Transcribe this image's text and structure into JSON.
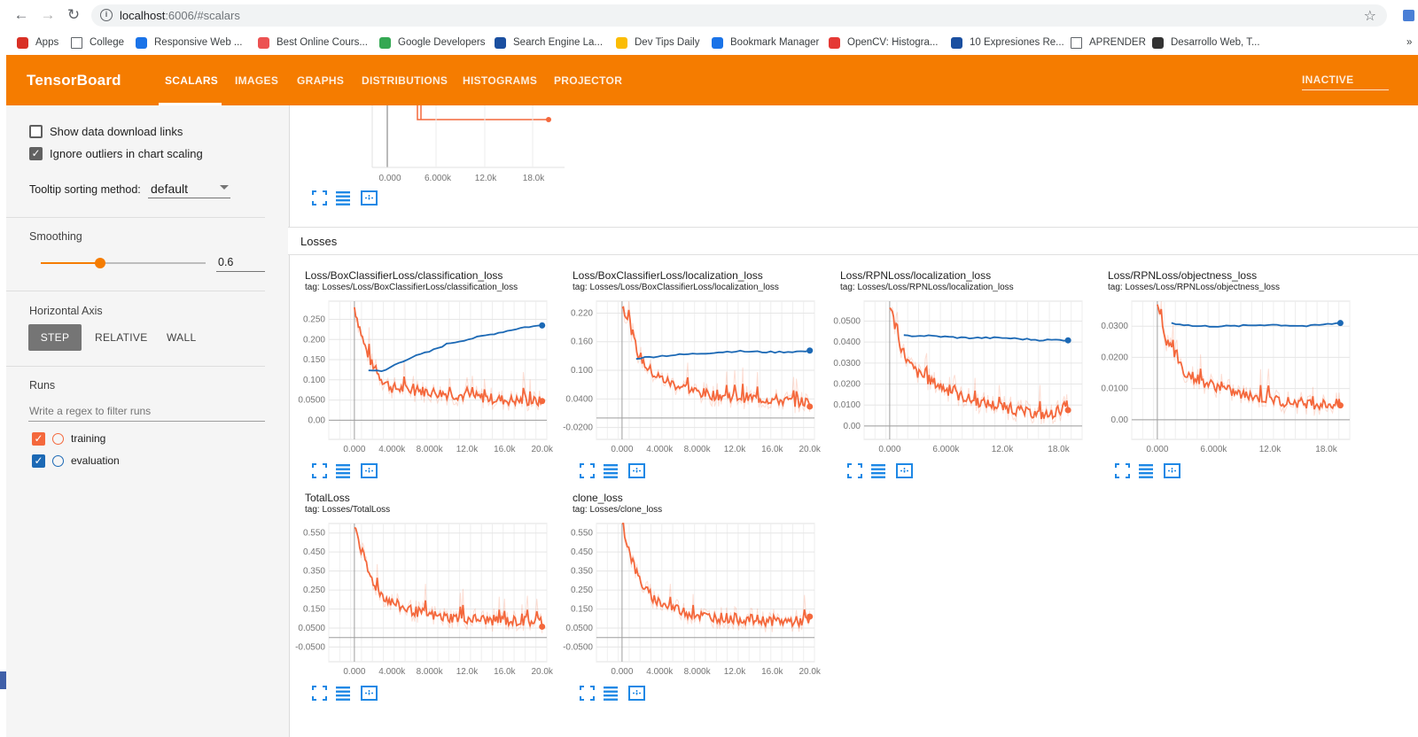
{
  "browser": {
    "url_host": "localhost",
    "url_rest": ":6006/#scalars",
    "bookmarks": [
      {
        "label": "Apps",
        "icon": "apps-grid-icon",
        "color": "#d93025"
      },
      {
        "label": "College",
        "icon": "folder-icon",
        "color": "#5f6368"
      },
      {
        "label": "Responsive Web ...",
        "icon": "udacity-icon",
        "color": "#1a73e8"
      },
      {
        "label": "Best Online Cours...",
        "icon": "udemy-icon",
        "color": "#ec5252"
      },
      {
        "label": "Google Developers",
        "icon": "google-dev-icon",
        "color": "#34a853"
      },
      {
        "label": "Search Engine La...",
        "icon": "gear-badge-icon",
        "color": "#1a4fa0"
      },
      {
        "label": "Dev Tips Daily",
        "icon": "u-badge-icon",
        "color": "#fbbc04"
      },
      {
        "label": "Bookmark Manager",
        "icon": "star-icon",
        "color": "#1a73e8"
      },
      {
        "label": "OpenCV: Histogra...",
        "icon": "opencv-icon",
        "color": "#e53935"
      },
      {
        "label": "10 Expresiones Re...",
        "icon": "globe-icon",
        "color": "#1a4fa0"
      },
      {
        "label": "APRENDER",
        "icon": "folder-icon",
        "color": "#5f6368"
      },
      {
        "label": "Desarrollo Web, T...",
        "icon": "page-icon",
        "color": "#333333"
      }
    ],
    "more": "»"
  },
  "tensorboard": {
    "title": "TensorBoard",
    "tabs": [
      "SCALARS",
      "IMAGES",
      "GRAPHS",
      "DISTRIBUTIONS",
      "HISTOGRAMS",
      "PROJECTOR"
    ],
    "active_tab": "SCALARS",
    "status": "INACTIVE",
    "accent": "#f57c00"
  },
  "sidebar": {
    "show_download": "Show data download links",
    "show_download_checked": false,
    "ignore_outliers": "Ignore outliers in chart scaling",
    "ignore_outliers_checked": true,
    "tooltip_label": "Tooltip sorting method:",
    "tooltip_value": "default",
    "smoothing_label": "Smoothing",
    "smoothing_value": "0.6",
    "smoothing_fraction": 0.6,
    "haxis_label": "Horizontal Axis",
    "haxis_options": [
      "STEP",
      "RELATIVE",
      "WALL"
    ],
    "haxis_selected": "STEP",
    "runs_label": "Runs",
    "runs_filter_placeholder": "Write a regex to filter runs",
    "runs": [
      {
        "name": "training",
        "color": "#f4683c",
        "checked": true
      },
      {
        "name": "evaluation",
        "color": "#1c69b5",
        "checked": true
      }
    ]
  },
  "main": {
    "partial_chart_ticks": [
      "0.000",
      "6.000k",
      "12.0k",
      "18.0k"
    ],
    "group_title": "Losses",
    "tool_icons": [
      "expand-icon",
      "list-icon",
      "fit-domain-icon"
    ]
  },
  "chart_data": [
    {
      "type": "line",
      "title": "Loss/BoxClassifierLoss/classification_loss",
      "tag": "tag: Losses/Loss/BoxClassifierLoss/classification_loss",
      "xticks": [
        "0.000",
        "4.000k",
        "8.000k",
        "12.0k",
        "16.0k",
        "20.0k"
      ],
      "xlim": [
        -1500,
        20500
      ],
      "yticks": [
        "0.00",
        "0.0500",
        "0.100",
        "0.150",
        "0.200",
        "0.250"
      ],
      "ylim": [
        -0.03,
        0.295
      ],
      "series": [
        {
          "name": "training",
          "color": "#f4683c",
          "x": [
            0,
            1000,
            2000,
            3000,
            4000,
            6000,
            8000,
            10000,
            12000,
            14000,
            16000,
            18000,
            20000
          ],
          "y": [
            0.28,
            0.19,
            0.13,
            0.1,
            0.08,
            0.075,
            0.07,
            0.065,
            0.06,
            0.055,
            0.05,
            0.048,
            0.046
          ]
        },
        {
          "name": "evaluation",
          "color": "#1c69b5",
          "x": [
            1500,
            3000,
            4500,
            6000,
            8000,
            10000,
            12000,
            14000,
            16000,
            18000,
            20000
          ],
          "y": [
            0.125,
            0.12,
            0.14,
            0.155,
            0.17,
            0.19,
            0.2,
            0.21,
            0.22,
            0.23,
            0.235
          ]
        }
      ]
    },
    {
      "type": "line",
      "title": "Loss/BoxClassifierLoss/localization_loss",
      "tag": "tag: Losses/Loss/BoxClassifierLoss/localization_loss",
      "xticks": [
        "0.000",
        "4.000k",
        "8.000k",
        "12.0k",
        "16.0k",
        "20.0k"
      ],
      "xlim": [
        -1500,
        20500
      ],
      "yticks": [
        "-0.0200",
        "0.0400",
        "0.100",
        "0.160",
        "0.220"
      ],
      "ylim": [
        -0.03,
        0.245
      ],
      "series": [
        {
          "name": "training",
          "color": "#f4683c",
          "x": [
            0,
            800,
            1600,
            2500,
            3500,
            5000,
            7000,
            9000,
            12000,
            15000,
            18000,
            20000
          ],
          "y": [
            0.24,
            0.2,
            0.14,
            0.11,
            0.09,
            0.075,
            0.06,
            0.05,
            0.045,
            0.04,
            0.035,
            0.033
          ]
        },
        {
          "name": "evaluation",
          "color": "#1c69b5",
          "x": [
            1500,
            4000,
            8000,
            12000,
            16000,
            20000
          ],
          "y": [
            0.125,
            0.13,
            0.135,
            0.14,
            0.138,
            0.14
          ]
        }
      ]
    },
    {
      "type": "line",
      "title": "Loss/RPNLoss/localization_loss",
      "tag": "tag: Losses/Loss/RPNLoss/localization_loss",
      "xticks": [
        "0.000",
        "6.000k",
        "12.0k",
        "18.0k"
      ],
      "xlim": [
        -1500,
        20500
      ],
      "yticks": [
        "0.00",
        "0.0100",
        "0.0200",
        "0.0300",
        "0.0400",
        "0.0500"
      ],
      "ylim": [
        -0.003,
        0.0595
      ],
      "series": [
        {
          "name": "training",
          "color": "#f4683c",
          "x": [
            0,
            1000,
            2000,
            3000,
            5000,
            7000,
            9000,
            11000,
            13000,
            15000,
            17000,
            19000
          ],
          "y": [
            0.058,
            0.04,
            0.03,
            0.025,
            0.02,
            0.015,
            0.012,
            0.01,
            0.008,
            0.006,
            0.005,
            0.01
          ]
        },
        {
          "name": "evaluation",
          "color": "#1c69b5",
          "x": [
            1500,
            4000,
            8000,
            12000,
            16000,
            19000
          ],
          "y": [
            0.043,
            0.043,
            0.042,
            0.042,
            0.041,
            0.041
          ]
        }
      ]
    },
    {
      "type": "line",
      "title": "Loss/RPNLoss/objectness_loss",
      "tag": "tag: Losses/Loss/RPNLoss/objectness_loss",
      "xticks": [
        "0.000",
        "6.000k",
        "12.0k",
        "18.0k"
      ],
      "xlim": [
        -1500,
        20500
      ],
      "yticks": [
        "0.00",
        "0.0100",
        "0.0200",
        "0.0300"
      ],
      "ylim": [
        -0.004,
        0.038
      ],
      "series": [
        {
          "name": "training",
          "color": "#f4683c",
          "x": [
            0,
            1000,
            2000,
            3000,
            5000,
            7000,
            9000,
            11000,
            13000,
            15000,
            17000,
            19500
          ],
          "y": [
            0.038,
            0.025,
            0.02,
            0.015,
            0.012,
            0.01,
            0.008,
            0.007,
            0.006,
            0.0055,
            0.005,
            0.005
          ]
        },
        {
          "name": "evaluation",
          "color": "#1c69b5",
          "x": [
            1500,
            4000,
            8000,
            12000,
            16000,
            19500
          ],
          "y": [
            0.031,
            0.03,
            0.03,
            0.0305,
            0.03,
            0.031
          ]
        }
      ]
    },
    {
      "type": "line",
      "title": "TotalLoss",
      "tag": "tag: Losses/TotalLoss",
      "xticks": [
        "0.000",
        "4.000k",
        "8.000k",
        "12.0k",
        "16.0k",
        "20.0k"
      ],
      "xlim": [
        -1500,
        20500
      ],
      "yticks": [
        "-0.0500",
        "0.0500",
        "0.150",
        "0.250",
        "0.350",
        "0.450",
        "0.550"
      ],
      "ylim": [
        -0.09,
        0.6
      ],
      "series": [
        {
          "name": "training",
          "color": "#f4683c",
          "x": [
            0,
            800,
            1600,
            2500,
            3500,
            5000,
            7000,
            9000,
            12000,
            15000,
            18000,
            20000
          ],
          "y": [
            0.6,
            0.45,
            0.33,
            0.25,
            0.2,
            0.16,
            0.13,
            0.11,
            0.1,
            0.09,
            0.085,
            0.085
          ]
        }
      ]
    },
    {
      "type": "line",
      "title": "clone_loss",
      "tag": "tag: Losses/clone_loss",
      "xticks": [
        "0.000",
        "4.000k",
        "8.000k",
        "12.0k",
        "16.0k",
        "20.0k"
      ],
      "xlim": [
        -1500,
        20500
      ],
      "yticks": [
        "-0.0500",
        "0.0500",
        "0.150",
        "0.250",
        "0.350",
        "0.450",
        "0.550"
      ],
      "ylim": [
        -0.09,
        0.6
      ],
      "series": [
        {
          "name": "training",
          "color": "#f4683c",
          "x": [
            0,
            800,
            1600,
            2500,
            3500,
            5000,
            7000,
            9000,
            12000,
            15000,
            18000,
            20000
          ],
          "y": [
            0.6,
            0.45,
            0.33,
            0.25,
            0.2,
            0.16,
            0.13,
            0.11,
            0.1,
            0.09,
            0.085,
            0.085
          ]
        }
      ]
    }
  ]
}
